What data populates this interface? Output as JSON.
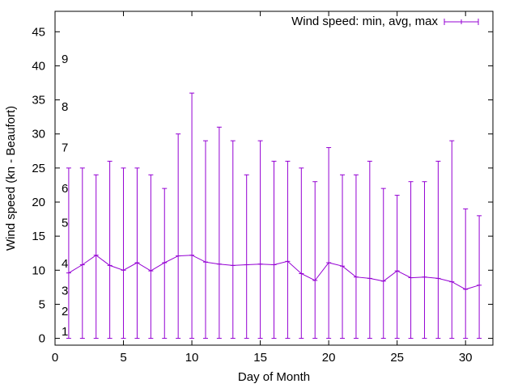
{
  "chart_data": {
    "type": "line",
    "xlabel": "Day of Month",
    "ylabel": "Wind speed (kn - Beaufort)",
    "xlim": [
      0,
      32
    ],
    "ylim": [
      -1,
      48
    ],
    "xticks": [
      0,
      5,
      10,
      15,
      20,
      25,
      30
    ],
    "yticks": [
      0,
      5,
      10,
      15,
      20,
      25,
      30,
      35,
      40,
      45
    ],
    "grid": false,
    "legend_position": "top-right",
    "beaufort_scale": [
      {
        "label": "1",
        "value": 1
      },
      {
        "label": "2",
        "value": 4
      },
      {
        "label": "3",
        "value": 7
      },
      {
        "label": "4",
        "value": 11
      },
      {
        "label": "5",
        "value": 17
      },
      {
        "label": "6",
        "value": 22
      },
      {
        "label": "7",
        "value": 28
      },
      {
        "label": "8",
        "value": 34
      },
      {
        "label": "9",
        "value": 41
      }
    ],
    "series": [
      {
        "name": "Wind speed: min, avg, max",
        "color": "#9400d3",
        "x": [
          1,
          2,
          3,
          4,
          5,
          6,
          7,
          8,
          9,
          10,
          11,
          12,
          13,
          14,
          15,
          16,
          17,
          18,
          19,
          20,
          21,
          22,
          23,
          24,
          25,
          26,
          27,
          28,
          29,
          30,
          31
        ],
        "avg": [
          9.6,
          10.8,
          12.2,
          10.7,
          10.0,
          11.1,
          9.9,
          11.1,
          12.1,
          12.2,
          11.2,
          10.9,
          10.7,
          10.8,
          10.9,
          10.8,
          11.3,
          9.5,
          8.5,
          11.1,
          10.6,
          9.0,
          8.8,
          8.4,
          9.9,
          8.9,
          9.0,
          8.8,
          8.3,
          7.2,
          7.8
        ],
        "min": [
          0,
          0,
          0,
          0,
          0,
          0,
          0,
          0,
          0,
          0,
          0,
          0,
          0,
          0,
          0,
          0,
          0,
          0,
          0,
          0,
          0,
          0,
          0,
          0,
          0,
          0,
          0,
          0,
          0,
          0,
          0
        ],
        "max": [
          25,
          25,
          24,
          26,
          25,
          25,
          24,
          22,
          30,
          36,
          29,
          31,
          29,
          24,
          29,
          26,
          26,
          25,
          23,
          28,
          24,
          24,
          26,
          22,
          21,
          23,
          23,
          26,
          29,
          19,
          18
        ]
      }
    ]
  }
}
